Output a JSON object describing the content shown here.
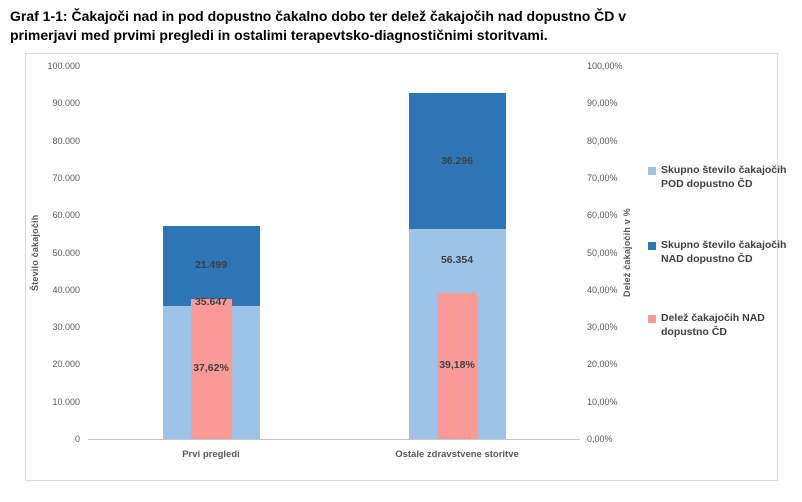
{
  "chart_data": {
    "type": "bar",
    "subtype": "stacked-column-with-overlay",
    "title": "Graf 1-1: Čakajoči nad in pod dopustno čakalno dobo ter delež čakajočih nad dopustno ČD v primerjavi med prvimi pregledi in ostalimi terapevtsko-diagnostičnimi storitvami.",
    "title_lines": [
      "Graf 1-1: Čakajoči nad in pod dopustno čakalno dobo ter delež čakajočih nad dopustno ČD v",
      "primerjavi med prvimi pregledi in ostalimi terapevtsko-diagnostičnimi storitvami."
    ],
    "categories": [
      "Prvi pregledi",
      "Ostale zdravstvene storitve"
    ],
    "series": [
      {
        "name": "Skupno število čakajočih POD dopustno ČD",
        "role": "stacked_column",
        "axis": "left",
        "color": "#9dc3e6",
        "values": [
          35647,
          56354
        ],
        "value_labels": [
          "35.647",
          "56.354"
        ]
      },
      {
        "name": "Skupno število čakajočih NAD dopustno ČD",
        "role": "stacked_column",
        "axis": "left",
        "color": "#2e75b5",
        "values": [
          21499,
          36296
        ],
        "value_labels": [
          "21.499",
          "36.296"
        ]
      },
      {
        "name": "Delež čakajočih NAD dopustno ČD",
        "role": "overlay_column",
        "axis": "right",
        "color": "#fc9a98",
        "values": [
          37.62,
          39.18
        ],
        "value_labels": [
          "37,62%",
          "39,18%"
        ]
      }
    ],
    "left_axis": {
      "title": "Število čakajočih",
      "min": 0,
      "max": 100000,
      "step": 10000,
      "tick_labels": [
        "0",
        "10.000",
        "20.000",
        "30.000",
        "40.000",
        "50.000",
        "60.000",
        "70.000",
        "80.000",
        "90.000",
        "100.000"
      ]
    },
    "right_axis": {
      "title": "Delež čakajočih v %",
      "min": 0,
      "max": 100,
      "step": 10,
      "tick_labels": [
        "0,00%",
        "10,00%",
        "20,00%",
        "30,00%",
        "40,00%",
        "50,00%",
        "60,00%",
        "70,00%",
        "80,00%",
        "90,00%",
        "100,00%"
      ]
    },
    "grid": false,
    "legend_position": "right",
    "frame_border_color": "#d9d9d9"
  }
}
